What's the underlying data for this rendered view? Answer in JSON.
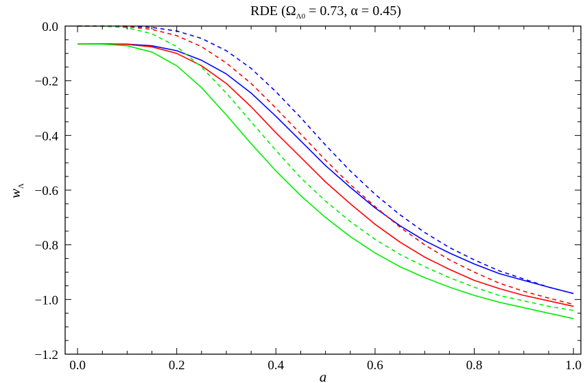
{
  "chart_data": {
    "type": "line",
    "title": {
      "prefix": "RDE (Ω",
      "sub": "Λ0",
      "suffix": " = 0.73, α = 0.45)"
    },
    "xlabel": "a",
    "ylabel": {
      "main": "w",
      "sub": "Λ"
    },
    "xlim": [
      -0.025,
      1.015
    ],
    "ylim": [
      -1.2,
      0.0
    ],
    "xticks": [
      "0.0",
      "0.2",
      "0.4",
      "0.6",
      "0.8",
      "1.0"
    ],
    "yticks": [
      "0.0",
      "−0.2",
      "−0.4",
      "−0.6",
      "−0.8",
      "−1.0",
      "−1.2"
    ],
    "grid": false,
    "legend": "none",
    "series": [
      {
        "color": "#0000ff",
        "dash": "solid",
        "x": [
          0.0,
          0.05,
          0.1,
          0.15,
          0.2,
          0.25,
          0.3,
          0.35,
          0.4,
          0.45,
          0.5,
          0.55,
          0.6,
          0.65,
          0.7,
          0.75,
          0.8,
          0.85,
          0.9,
          0.95,
          1.0
        ],
        "y": [
          -0.065,
          -0.065,
          -0.066,
          -0.072,
          -0.09,
          -0.125,
          -0.175,
          -0.245,
          -0.33,
          -0.42,
          -0.51,
          -0.59,
          -0.665,
          -0.73,
          -0.785,
          -0.83,
          -0.87,
          -0.905,
          -0.93,
          -0.955,
          -0.978
        ]
      },
      {
        "color": "#0000ff",
        "dash": "dashed",
        "x": [
          0.0,
          0.05,
          0.1,
          0.15,
          0.2,
          0.25,
          0.3,
          0.35,
          0.4,
          0.45,
          0.5,
          0.55,
          0.6,
          0.65,
          0.7,
          0.75,
          0.8,
          0.85,
          0.9,
          0.95,
          1.0
        ],
        "y": [
          0.0,
          0.0,
          0.0,
          -0.005,
          -0.018,
          -0.045,
          -0.09,
          -0.155,
          -0.24,
          -0.335,
          -0.435,
          -0.53,
          -0.615,
          -0.69,
          -0.755,
          -0.81,
          -0.855,
          -0.895,
          -0.925,
          -0.955,
          -0.978
        ]
      },
      {
        "color": "#ff0000",
        "dash": "solid",
        "x": [
          0.0,
          0.05,
          0.1,
          0.15,
          0.2,
          0.25,
          0.3,
          0.35,
          0.4,
          0.45,
          0.5,
          0.55,
          0.6,
          0.65,
          0.7,
          0.75,
          0.8,
          0.85,
          0.9,
          0.95,
          1.0
        ],
        "y": [
          -0.065,
          -0.065,
          -0.067,
          -0.076,
          -0.1,
          -0.145,
          -0.21,
          -0.295,
          -0.39,
          -0.48,
          -0.57,
          -0.65,
          -0.725,
          -0.79,
          -0.845,
          -0.89,
          -0.93,
          -0.96,
          -0.985,
          -1.005,
          -1.025
        ]
      },
      {
        "color": "#ff0000",
        "dash": "dashed",
        "x": [
          0.0,
          0.05,
          0.1,
          0.15,
          0.2,
          0.25,
          0.3,
          0.35,
          0.4,
          0.45,
          0.5,
          0.55,
          0.6,
          0.65,
          0.7,
          0.75,
          0.8,
          0.85,
          0.9,
          0.95,
          1.0
        ],
        "y": [
          0.0,
          0.0,
          -0.002,
          -0.012,
          -0.035,
          -0.075,
          -0.135,
          -0.21,
          -0.3,
          -0.395,
          -0.49,
          -0.58,
          -0.66,
          -0.735,
          -0.8,
          -0.855,
          -0.9,
          -0.94,
          -0.97,
          -0.995,
          -1.018
        ]
      },
      {
        "color": "#00ee00",
        "dash": "solid",
        "x": [
          0.0,
          0.05,
          0.1,
          0.15,
          0.2,
          0.25,
          0.3,
          0.35,
          0.4,
          0.45,
          0.5,
          0.55,
          0.6,
          0.65,
          0.7,
          0.75,
          0.8,
          0.85,
          0.9,
          0.95,
          1.0
        ],
        "y": [
          -0.065,
          -0.066,
          -0.072,
          -0.095,
          -0.145,
          -0.225,
          -0.325,
          -0.43,
          -0.53,
          -0.62,
          -0.7,
          -0.77,
          -0.83,
          -0.88,
          -0.92,
          -0.955,
          -0.985,
          -1.01,
          -1.03,
          -1.05,
          -1.07
        ]
      },
      {
        "color": "#00ee00",
        "dash": "dashed",
        "x": [
          0.0,
          0.05,
          0.1,
          0.15,
          0.2,
          0.25,
          0.3,
          0.35,
          0.4,
          0.45,
          0.5,
          0.55,
          0.6,
          0.65,
          0.7,
          0.75,
          0.8,
          0.85,
          0.9,
          0.95,
          1.0
        ],
        "y": [
          0.0,
          0.0,
          -0.006,
          -0.028,
          -0.075,
          -0.15,
          -0.245,
          -0.35,
          -0.455,
          -0.555,
          -0.64,
          -0.715,
          -0.78,
          -0.835,
          -0.88,
          -0.92,
          -0.955,
          -0.985,
          -1.005,
          -1.025,
          -1.04
        ]
      }
    ]
  }
}
